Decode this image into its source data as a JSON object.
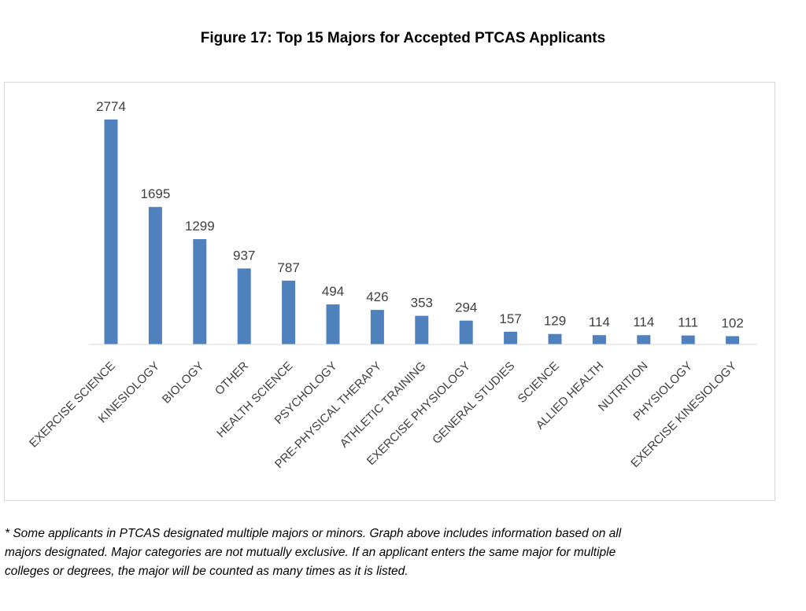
{
  "title": "Figure 17: Top 15 Majors for Accepted PTCAS Applicants",
  "chart_data": {
    "type": "bar",
    "title": "Figure 17: Top 15 Majors for Accepted PTCAS Applicants",
    "categories": [
      "EXERCISE SCIENCE",
      "KINESIOLOGY",
      "BIOLOGY",
      "OTHER",
      "HEALTH SCIENCE",
      "PSYCHOLOGY",
      "PRE-PHYSICAL THERAPY",
      "ATHLETIC TRAINING",
      "EXERCISE PHYSIOLOGY",
      "GENERAL STUDIES",
      "SCIENCE",
      "ALLIED HEALTH",
      "NUTRITION",
      "PHYSIOLOGY",
      "EXERCISE KINESIOLOGY"
    ],
    "values": [
      2774,
      1695,
      1299,
      937,
      787,
      494,
      426,
      353,
      294,
      157,
      129,
      114,
      114,
      111,
      102
    ],
    "data_labels": [
      "2774",
      "1695",
      "1299",
      "937",
      "787",
      "494",
      "426",
      "353",
      "294",
      "157",
      "129",
      "114",
      "114",
      "111",
      "102"
    ],
    "xlabel": "",
    "ylabel": "",
    "ylim": [
      0,
      2774
    ],
    "grid": false,
    "legend": "none",
    "bar_color": "#4f81bd"
  },
  "footnote": {
    "line1": "* Some applicants in PTCAS designated multiple majors or minors.   Graph above includes information based on all",
    "line2": "majors designated.  Major categories are not mutually exclusive.  If an applicant enters the same major for multiple",
    "line3": "colleges or degrees, the major will be counted as many times as it is listed."
  }
}
